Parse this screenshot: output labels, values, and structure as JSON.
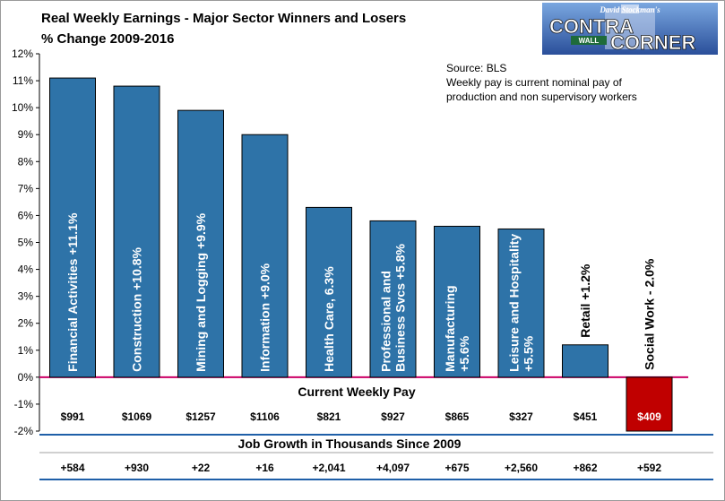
{
  "title": "Real Weekly Earnings - Major Sector Winners and Losers",
  "subtitle": "% Change 2009-2016",
  "logo": {
    "top": "David Stockman's",
    "line1": "CONTRA",
    "line2": "CORNER",
    "sign": "WALL"
  },
  "notes": [
    "Source: BLS",
    "Weekly pay is current nominal pay of",
    "production and non supervisory workers"
  ],
  "pay_header": "Current Weekly Pay",
  "jobs_header": "Job Growth in Thousands Since 2009",
  "colors": {
    "bar": "#2E73A8",
    "negative_bar": "#C00000",
    "zero_line": "#CC0066",
    "divider": "#1F5FA8"
  },
  "chart_data": {
    "type": "bar",
    "title": "Real Weekly Earnings - Major Sector Winners and Losers",
    "subtitle": "% Change 2009-2016",
    "ylim": [
      -2,
      12
    ],
    "yticks": [
      "-2%",
      "-1%",
      "0%",
      "1%",
      "2%",
      "3%",
      "4%",
      "5%",
      "6%",
      "7%",
      "8%",
      "9%",
      "10%",
      "11%",
      "12%"
    ],
    "grid": false,
    "categories": [
      [
        "Financial Activities +11.1%"
      ],
      [
        "Construction +10.8%"
      ],
      [
        "Mining and Logging +9.9%"
      ],
      [
        "Information +9.0%"
      ],
      [
        "Health Care, 6.3%"
      ],
      [
        "Professional and",
        "Business Svcs +5.8%"
      ],
      [
        "Manufacturing",
        "+5.6%"
      ],
      [
        "Leisure and Hospitality",
        "+5.5%"
      ],
      [
        "Retail +1.2%"
      ],
      [
        "Social Work - 2.0%"
      ]
    ],
    "values": [
      11.1,
      10.8,
      9.9,
      9.0,
      6.3,
      5.8,
      5.6,
      5.5,
      1.2,
      -2.0
    ],
    "weekly_pay": [
      "$991",
      "$1069",
      "$1257",
      "$1106",
      "$821",
      "$927",
      "$865",
      "$327",
      "$451",
      "$409"
    ],
    "job_growth": [
      "+584",
      "+930",
      "+22",
      "+16",
      "+2,041",
      "+4,097",
      "+675",
      "+2,560",
      "+862",
      "+592"
    ]
  }
}
